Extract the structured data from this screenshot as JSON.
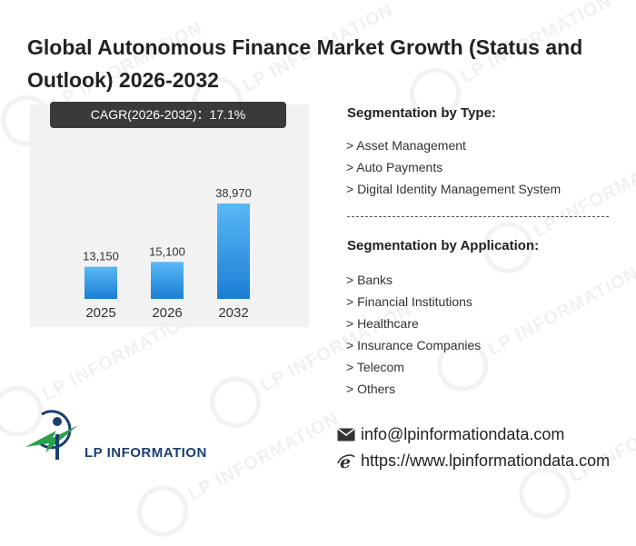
{
  "header": {
    "title": "Global Autonomous Finance Market Growth (Status and Outlook) 2026-2032"
  },
  "chart_data": {
    "type": "bar",
    "title": "",
    "xlabel": "",
    "ylabel": "",
    "cagr_label": "CAGR(2026-2032)：17.1%",
    "categories": [
      "2025",
      "2026",
      "2032"
    ],
    "values": [
      13150,
      15100,
      38970
    ],
    "value_labels": [
      "13,150",
      "15,100",
      "38,970"
    ],
    "ylim": [
      0,
      38970
    ],
    "grid": false,
    "legend": "none",
    "bar_color_top": "#5ab8f5",
    "bar_color_bottom": "#1a7fd4"
  },
  "segmentation": {
    "type_heading": "Segmentation by Type:",
    "types": [
      "> Asset Management",
      "> Auto Payments",
      "> Digital Identity Management System"
    ],
    "application_heading": "Segmentation by Application:",
    "applications": [
      "> Banks",
      "> Financial Institutions",
      "> Healthcare",
      "> Insurance Companies",
      "> Telecom",
      "> Others"
    ]
  },
  "footer": {
    "logo_text": "LP INFORMATION",
    "email": "info@lpinformationdata.com",
    "website": "https://www.lpinformationdata.com",
    "email_icon": "envelope-icon",
    "website_icon": "browser-e-icon"
  },
  "watermark": {
    "text": "LP INFORMATION"
  },
  "colors": {
    "logo_blue": "#1a3f73",
    "logo_green": "#2aa04a",
    "bar_blue": "#2e90e0"
  }
}
